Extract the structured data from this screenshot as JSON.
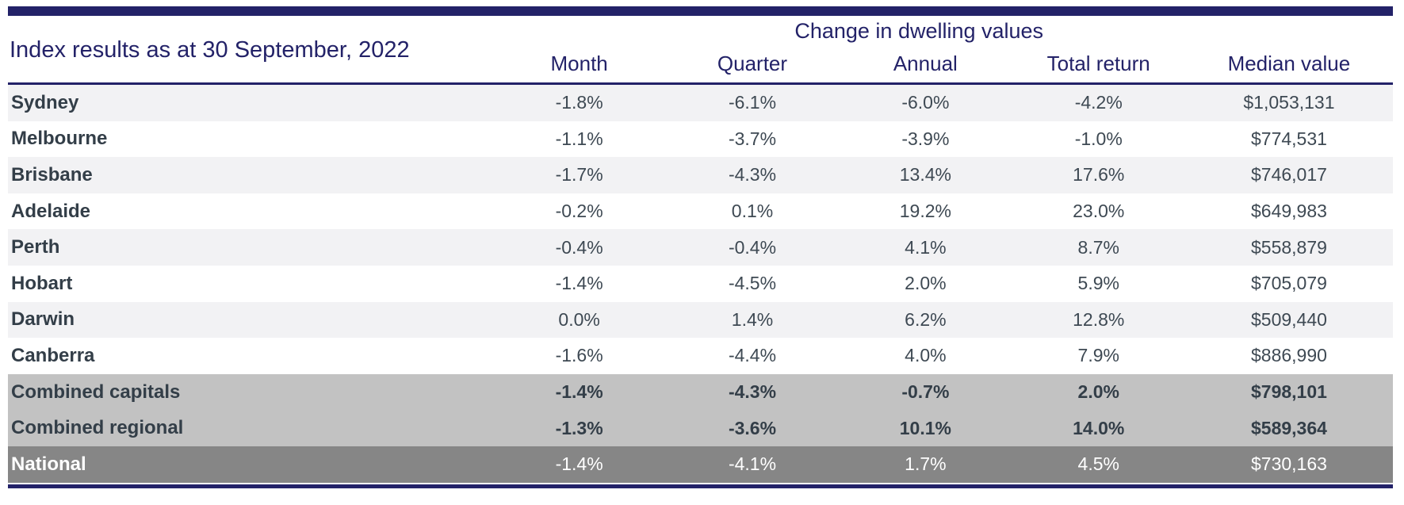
{
  "colors": {
    "accent_navy": "#232268",
    "row_stripe": "#f2f2f4",
    "subtotal_gray": "#c2c2c2",
    "total_gray": "#868686",
    "label_charcoal": "#333e48",
    "value_gray": "#3e4953"
  },
  "chart_data": {
    "type": "table",
    "title": "Index results as at 30 September, 2022",
    "group_header": "Change in dwelling values",
    "columns": [
      "Month",
      "Quarter",
      "Annual",
      "Total return",
      "Median value"
    ],
    "rows": [
      {
        "name": "Sydney",
        "values": [
          "-1.8%",
          "-6.1%",
          "-6.0%",
          "-4.2%",
          "$1,053,131"
        ],
        "emphasis": "none"
      },
      {
        "name": "Melbourne",
        "values": [
          "-1.1%",
          "-3.7%",
          "-3.9%",
          "-1.0%",
          "$774,531"
        ],
        "emphasis": "none"
      },
      {
        "name": "Brisbane",
        "values": [
          "-1.7%",
          "-4.3%",
          "13.4%",
          "17.6%",
          "$746,017"
        ],
        "emphasis": "none"
      },
      {
        "name": "Adelaide",
        "values": [
          "-0.2%",
          "0.1%",
          "19.2%",
          "23.0%",
          "$649,983"
        ],
        "emphasis": "none"
      },
      {
        "name": "Perth",
        "values": [
          "-0.4%",
          "-0.4%",
          "4.1%",
          "8.7%",
          "$558,879"
        ],
        "emphasis": "none"
      },
      {
        "name": "Hobart",
        "values": [
          "-1.4%",
          "-4.5%",
          "2.0%",
          "5.9%",
          "$705,079"
        ],
        "emphasis": "none"
      },
      {
        "name": "Darwin",
        "values": [
          "0.0%",
          "1.4%",
          "6.2%",
          "12.8%",
          "$509,440"
        ],
        "emphasis": "none"
      },
      {
        "name": "Canberra",
        "values": [
          "-1.6%",
          "-4.4%",
          "4.0%",
          "7.9%",
          "$886,990"
        ],
        "emphasis": "none"
      },
      {
        "name": "Combined capitals",
        "values": [
          "-1.4%",
          "-4.3%",
          "-0.7%",
          "2.0%",
          "$798,101"
        ],
        "emphasis": "subtotal"
      },
      {
        "name": "Combined regional",
        "values": [
          "-1.3%",
          "-3.6%",
          "10.1%",
          "14.0%",
          "$589,364"
        ],
        "emphasis": "subtotal"
      },
      {
        "name": "National",
        "values": [
          "-1.4%",
          "-4.1%",
          "1.7%",
          "4.5%",
          "$730,163"
        ],
        "emphasis": "total"
      }
    ]
  }
}
